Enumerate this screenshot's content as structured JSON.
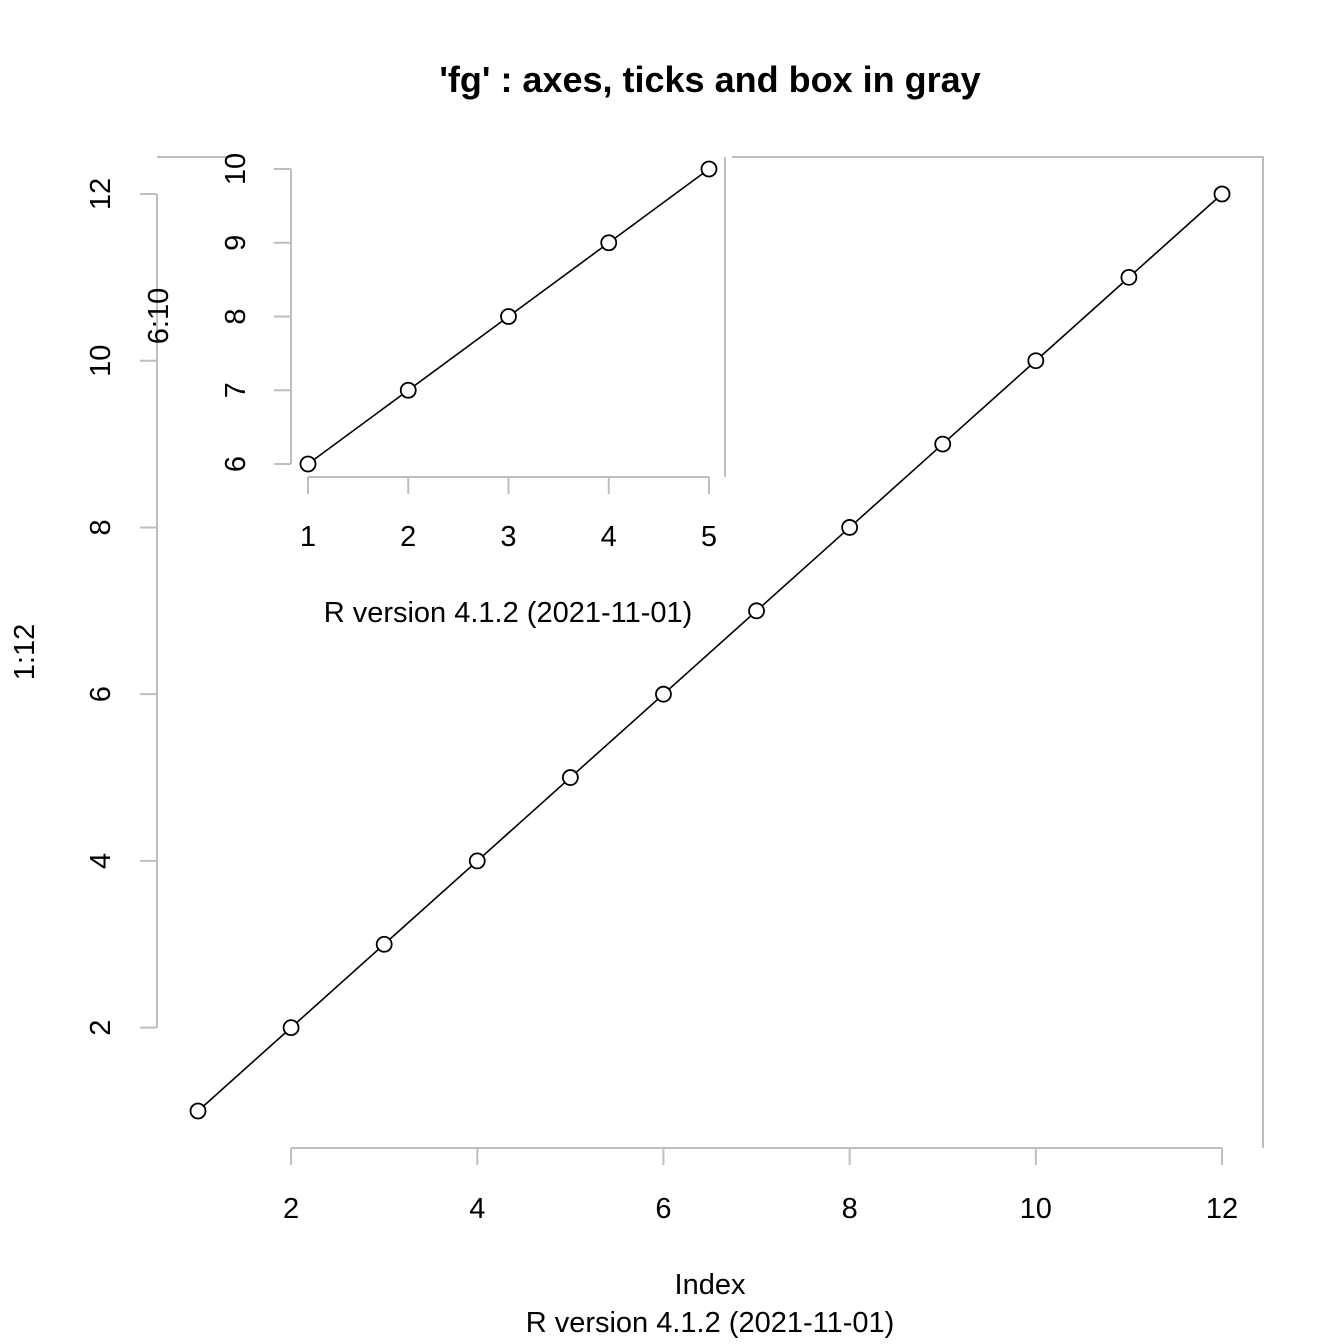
{
  "chart_data": [
    {
      "type": "line",
      "title": "'fg' : axes, ticks and box in gray",
      "xlabel": "Index",
      "ylabel": "1:12",
      "sub": "R version 4.1.2 (2021-11-01)",
      "x": [
        1,
        2,
        3,
        4,
        5,
        6,
        7,
        8,
        9,
        10,
        11,
        12
      ],
      "y": [
        1,
        2,
        3,
        4,
        5,
        6,
        7,
        8,
        9,
        10,
        11,
        12
      ],
      "xticks": [
        2,
        4,
        6,
        8,
        10,
        12
      ],
      "yticks": [
        2,
        4,
        6,
        8,
        10,
        12
      ],
      "xlim": [
        1,
        12
      ],
      "ylim": [
        1,
        12
      ],
      "markers": "open-circle",
      "axis_color": "#bebebe",
      "line_color": "#000000"
    },
    {
      "type": "line",
      "title": "",
      "xlabel": "R version 4.1.2 (2021-11-01)",
      "ylabel": "6:10",
      "x": [
        1,
        2,
        3,
        4,
        5
      ],
      "y": [
        6,
        7,
        8,
        9,
        10
      ],
      "xticks": [
        1,
        2,
        3,
        4,
        5
      ],
      "yticks": [
        6,
        7,
        8,
        9,
        10
      ],
      "xlim": [
        1,
        5
      ],
      "ylim": [
        6,
        10
      ],
      "markers": "open-circle",
      "axis_color": "#bebebe",
      "line_color": "#000000"
    }
  ]
}
